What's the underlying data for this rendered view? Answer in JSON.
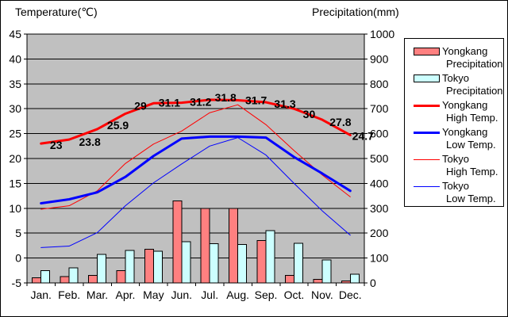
{
  "titles": {
    "temperature": "Temperature(℃)",
    "precipitation": "Precipitation(mm)"
  },
  "chart_data": {
    "type": "combo-bar-line",
    "plot_background": "#C0C0C0",
    "grid": "horizontal",
    "categories": [
      "Jan.",
      "Feb.",
      "Mar.",
      "Apr.",
      "May",
      "Jun.",
      "Jul.",
      "Aug.",
      "Sep.",
      "Oct.",
      "Nov.",
      "Dec."
    ],
    "temp_axis": {
      "label": "Temperature(℃)",
      "min": -5,
      "max": 45,
      "tick_step": 5,
      "ticks": [
        45,
        40,
        35,
        30,
        25,
        20,
        15,
        10,
        5,
        0,
        -5
      ]
    },
    "precip_axis": {
      "label": "Precipitation(mm)",
      "min": 0,
      "max": 1000,
      "tick_step": 100,
      "ticks": [
        1000,
        900,
        800,
        700,
        600,
        500,
        400,
        300,
        200,
        100,
        0
      ]
    },
    "series": [
      {
        "name": "Yongkang Precipitation",
        "type": "bar",
        "axis": "precip",
        "color": "#FF8080",
        "values": [
          20,
          25,
          30,
          50,
          135,
          330,
          300,
          300,
          170,
          30,
          15,
          8
        ]
      },
      {
        "name": "Tokyo Precipitation",
        "type": "bar",
        "axis": "precip",
        "color": "#CCFFFF",
        "values": [
          50,
          60,
          115,
          130,
          128,
          165,
          157,
          155,
          210,
          160,
          93,
          35
        ]
      },
      {
        "name": "Yongkang High Temp.",
        "type": "line",
        "axis": "temp",
        "color": "#FF0000",
        "width": 3,
        "values": [
          23,
          23.8,
          25.9,
          29,
          31.1,
          31.2,
          31.8,
          31.7,
          31.3,
          30,
          27.8,
          24.7
        ],
        "point_labels": [
          "23",
          "23.8",
          "25.9",
          "29",
          "31.1",
          "31.2",
          "31.8",
          "31.7",
          "31.3",
          "30",
          "27.8",
          "24.7"
        ]
      },
      {
        "name": "Yongkang Low Temp.",
        "type": "line",
        "axis": "temp",
        "color": "#0000FF",
        "width": 3,
        "values": [
          11,
          11.8,
          13.2,
          16.3,
          20.5,
          24,
          24.4,
          24.4,
          24.2,
          20.3,
          17,
          13.5
        ]
      },
      {
        "name": "Tokyo High Temp.",
        "type": "line",
        "axis": "temp",
        "color": "#FF0000",
        "width": 1,
        "values": [
          9.8,
          10.5,
          13.5,
          19,
          22.9,
          25.5,
          29.2,
          30.8,
          26.8,
          21.6,
          16.7,
          12.3
        ]
      },
      {
        "name": "Tokyo Low Temp.",
        "type": "line",
        "axis": "temp",
        "color": "#0000FF",
        "width": 1,
        "values": [
          2.1,
          2.4,
          5.1,
          10.5,
          15.1,
          18.9,
          22.5,
          24.2,
          20.7,
          15,
          9.5,
          4.6
        ]
      }
    ]
  },
  "legend": {
    "position": "right",
    "entries": [
      {
        "name": "Yongkang Precipitation",
        "swatch": "bar",
        "color": "#FF8080",
        "label_line1": "Yongkang",
        "label_line2": "Precipitation"
      },
      {
        "name": "Tokyo Precipitation",
        "swatch": "bar",
        "color": "#CCFFFF",
        "label_line1": "Tokyo",
        "label_line2": "Precipitation"
      },
      {
        "name": "Yongkang High Temp.",
        "swatch": "line",
        "thickness": 3,
        "color": "#FF0000",
        "label_line1": "Yongkang",
        "label_line2": "High Temp."
      },
      {
        "name": "Yongkang Low Temp.",
        "swatch": "line",
        "thickness": 3,
        "color": "#0000FF",
        "label_line1": "Yongkang",
        "label_line2": "Low Temp."
      },
      {
        "name": "Tokyo High Temp.",
        "swatch": "line",
        "thickness": 1,
        "color": "#FF0000",
        "label_line1": "Tokyo",
        "label_line2": "High Temp."
      },
      {
        "name": "Tokyo Low Temp.",
        "swatch": "line",
        "thickness": 1,
        "color": "#0000FF",
        "label_line1": "Tokyo",
        "label_line2": "Low Temp."
      }
    ]
  },
  "colors": {
    "plot_background": "#C0C0C0",
    "yongkang_precip": "#FF8080",
    "tokyo_precip": "#CCFFFF",
    "high_temp_red": "#FF0000",
    "low_temp_blue": "#0000FF",
    "grid_black": "#000000"
  }
}
